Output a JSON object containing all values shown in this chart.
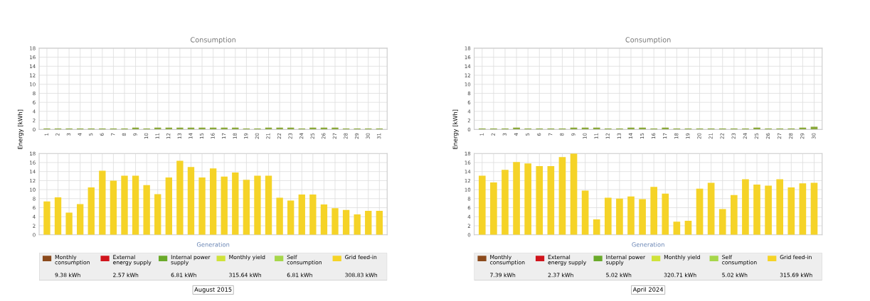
{
  "chart_data": [
    {
      "type": "bar",
      "title": "Consumption",
      "ylabel": "Energy [kWh]",
      "categories": [
        "1",
        "2",
        "3",
        "4",
        "5",
        "6",
        "7",
        "8",
        "9",
        "10",
        "11",
        "12",
        "13",
        "14",
        "15",
        "16",
        "17",
        "18",
        "19",
        "20",
        "21",
        "22",
        "23",
        "24",
        "25",
        "26",
        "27",
        "28",
        "29",
        "30",
        "31"
      ],
      "values": [
        0.2,
        0.2,
        0.2,
        0.2,
        0.2,
        0.2,
        0.2,
        0.2,
        0.4,
        0.2,
        0.4,
        0.4,
        0.4,
        0.4,
        0.4,
        0.4,
        0.4,
        0.4,
        0.2,
        0.2,
        0.4,
        0.4,
        0.4,
        0.2,
        0.4,
        0.4,
        0.4,
        0.2,
        0.2,
        0.2,
        0.2
      ],
      "color": "#8aa83a",
      "ylim": [
        0,
        18
      ],
      "yticks": [
        0,
        2,
        4,
        6,
        8,
        10,
        12,
        14,
        16,
        18
      ],
      "grid": true
    },
    {
      "type": "bar",
      "xlabel": "Generation",
      "categories": [
        null,
        null,
        null,
        null,
        null,
        null,
        null,
        null,
        null,
        null,
        null,
        null,
        null,
        null,
        null,
        null,
        null,
        null,
        null,
        null,
        null,
        null,
        null,
        null,
        null,
        null,
        null,
        null,
        null,
        null,
        null
      ],
      "values": [
        7.4,
        8.3,
        4.9,
        6.8,
        10.5,
        14.2,
        12.0,
        13.1,
        13.1,
        11.0,
        9.0,
        12.7,
        16.4,
        15.0,
        12.7,
        14.7,
        12.9,
        13.8,
        12.2,
        13.1,
        13.1,
        8.2,
        7.6,
        8.9,
        8.9,
        6.7,
        5.9,
        5.5,
        4.5,
        5.3,
        5.3
      ],
      "color": "#f5d327",
      "ylim": [
        0,
        18
      ],
      "yticks": [
        0,
        2,
        4,
        6,
        8,
        10,
        12,
        14,
        16,
        18
      ],
      "grid": true
    },
    {
      "type": "other",
      "categories": [
        "Monthly consumption",
        "External energy supply",
        "Internal power supply",
        "Monthly yield",
        "Self consumption",
        "Grid feed-in"
      ],
      "value_labels": [
        "9.38 kWh",
        "2.57 kWh",
        "6.81 kWh",
        "315.64 kWh",
        "6.81 kWh",
        "308.83 kWh"
      ],
      "colors": [
        "#8b4a1c",
        "#d0151c",
        "#6aaa2a",
        "#cfe23a",
        "#a6d64a",
        "#f5d327"
      ],
      "annotations": [
        "August 2015"
      ]
    },
    {
      "type": "bar",
      "title": "Consumption",
      "ylabel": "Energy [kWh]",
      "categories": [
        "1",
        "2",
        "3",
        "4",
        "5",
        "6",
        "7",
        "8",
        "9",
        "10",
        "11",
        "12",
        "13",
        "14",
        "15",
        "16",
        "17",
        "18",
        "19",
        "20",
        "21",
        "22",
        "23",
        "24",
        "25",
        "26",
        "27",
        "28",
        "29",
        "30"
      ],
      "values": [
        0.2,
        0.2,
        0.2,
        0.4,
        0.2,
        0.2,
        0.2,
        0.2,
        0.4,
        0.4,
        0.4,
        0.2,
        0.2,
        0.4,
        0.4,
        0.2,
        0.4,
        0.2,
        0.2,
        0.2,
        0.2,
        0.2,
        0.2,
        0.2,
        0.4,
        0.2,
        0.2,
        0.2,
        0.4,
        0.6
      ],
      "color": "#8aa83a",
      "ylim": [
        0,
        18
      ],
      "yticks": [
        0,
        2,
        4,
        6,
        8,
        10,
        12,
        14,
        16,
        18
      ],
      "grid": true
    },
    {
      "type": "bar",
      "xlabel": "Generation",
      "categories": [
        null,
        null,
        null,
        null,
        null,
        null,
        null,
        null,
        null,
        null,
        null,
        null,
        null,
        null,
        null,
        null,
        null,
        null,
        null,
        null,
        null,
        null,
        null,
        null,
        null,
        null,
        null,
        null,
        null,
        null
      ],
      "values": [
        13.1,
        11.6,
        14.4,
        16.1,
        15.8,
        15.2,
        15.2,
        17.2,
        18.0,
        9.8,
        3.4,
        8.2,
        8.0,
        8.5,
        7.9,
        10.6,
        9.1,
        2.9,
        3.1,
        10.2,
        11.5,
        5.7,
        8.8,
        12.3,
        11.1,
        10.9,
        12.3,
        10.5,
        11.4,
        11.5
      ],
      "color": "#f5d327",
      "ylim": [
        0,
        18
      ],
      "yticks": [
        0,
        2,
        4,
        6,
        8,
        10,
        12,
        14,
        16,
        18
      ],
      "grid": true
    },
    {
      "type": "other",
      "categories": [
        "Monthly consumption",
        "External energy supply",
        "Internal power supply",
        "Monthly yield",
        "Self consumption",
        "Grid feed-in"
      ],
      "value_labels": [
        "7.39 kWh",
        "2.37 kWh",
        "5.02 kWh",
        "320.71 kWh",
        "5.02 kWh",
        "315.69 kWh"
      ],
      "colors": [
        "#8b4a1c",
        "#d0151c",
        "#6aaa2a",
        "#cfe23a",
        "#a6d64a",
        "#f5d327"
      ],
      "annotations": [
        "April 2024"
      ]
    }
  ]
}
